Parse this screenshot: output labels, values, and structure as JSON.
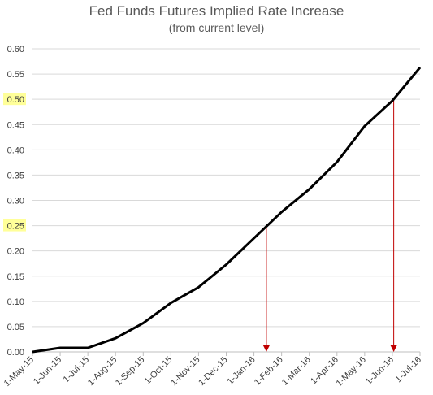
{
  "chart_data": {
    "type": "line",
    "title": "Fed Funds Futures Implied Rate Increase",
    "subtitle": "(from current level)",
    "xlabel": "",
    "ylabel": "",
    "ylim": [
      0,
      0.6
    ],
    "yticks": [
      "0.00",
      "0.05",
      "0.10",
      "0.15",
      "0.20",
      "0.25",
      "0.30",
      "0.35",
      "0.40",
      "0.45",
      "0.50",
      "0.55",
      "0.60"
    ],
    "highlighted_yticks": [
      "0.25",
      "0.50"
    ],
    "highlight_color": "#ffff99",
    "categories": [
      "1-May-15",
      "1-Jun-15",
      "1-Jul-15",
      "1-Aug-15",
      "1-Sep-15",
      "1-Oct-15",
      "1-Nov-15",
      "1-Dec-15",
      "1-Jan-16",
      "1-Feb-16",
      "1-Mar-16",
      "1-Apr-16",
      "1-May-16",
      "1-Jun-16",
      "1-Jul-16"
    ],
    "series": [
      {
        "values": [
          0.0,
          0.008,
          0.008,
          0.027,
          0.057,
          0.097,
          0.128,
          0.173,
          0.225,
          0.277,
          0.322,
          0.376,
          0.447,
          0.497,
          0.563
        ],
        "color": "#000000"
      }
    ],
    "markers": [
      {
        "y": 0.25,
        "x_fraction_of_month_index": 8.45,
        "color": "#c00000"
      },
      {
        "y": 0.5,
        "x_fraction_of_month_index": 13.05,
        "color": "#c00000"
      }
    ],
    "grid": "horizontal"
  }
}
